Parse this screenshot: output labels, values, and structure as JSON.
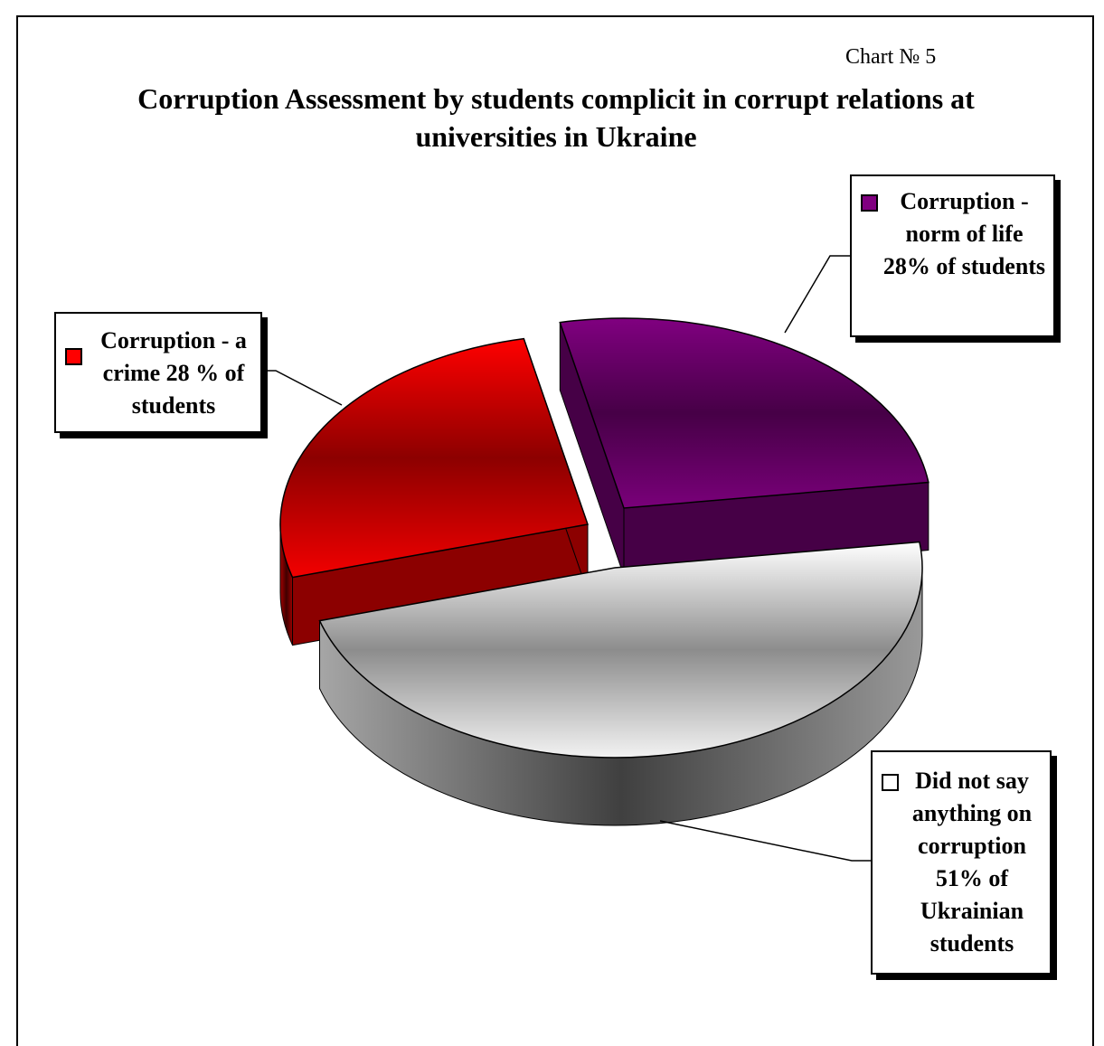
{
  "chart_data": {
    "type": "pie3d",
    "subtitle": "Chart № 5",
    "title": "Corruption Assessment by students complicit in corrupt relations at universities in Ukraine",
    "categories": [
      "Corruption - norm of life 28% of students",
      "Did not say anything on corruption 51% of Ukrainian students",
      "Corruption - a crime 28 % of students"
    ],
    "values": [
      28,
      51,
      28
    ],
    "colors": [
      "#800080",
      "#ffffff",
      "#ff0000"
    ]
  }
}
